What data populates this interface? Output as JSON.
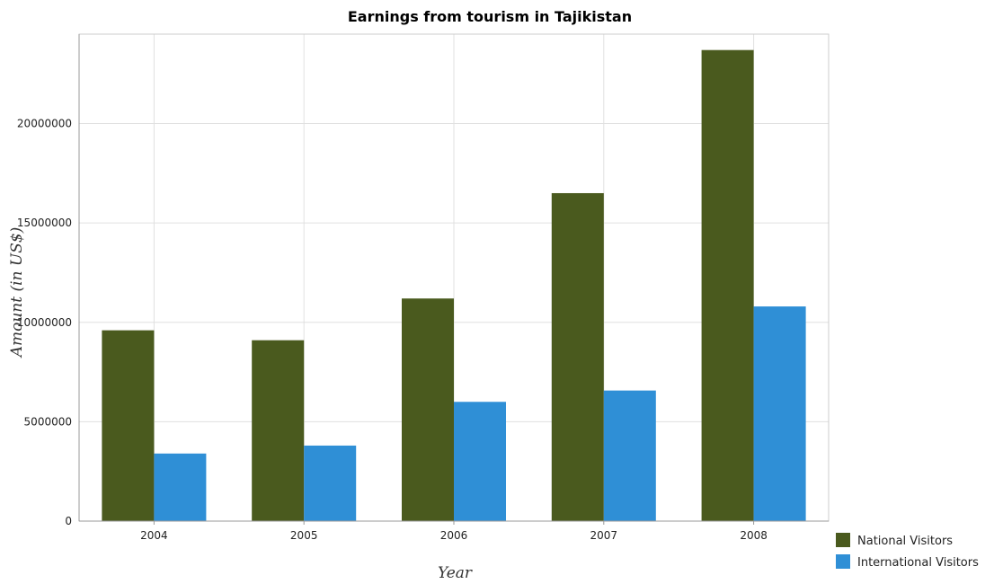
{
  "chart_data": {
    "type": "bar",
    "title": "Earnings from tourism in Tajikistan",
    "xlabel": "Year",
    "ylabel": "Amount (in US$)",
    "categories": [
      "2004",
      "2005",
      "2006",
      "2007",
      "2008"
    ],
    "series": [
      {
        "name": "National Visitors",
        "color": "#4a5a1e",
        "values": [
          9600000,
          9100000,
          11200000,
          16500000,
          23700000
        ]
      },
      {
        "name": "International Visitors",
        "color": "#2f8fd6",
        "values": [
          3400000,
          3800000,
          6000000,
          6570000,
          10800000
        ]
      }
    ],
    "ylim": [
      0,
      24500000
    ],
    "yticks": [
      0,
      5000000,
      10000000,
      15000000,
      20000000
    ],
    "ytick_labels": [
      "0",
      "5000000",
      "10000000",
      "15000000",
      "20000000"
    ],
    "grid": true,
    "legend_position": "bottom-right"
  }
}
